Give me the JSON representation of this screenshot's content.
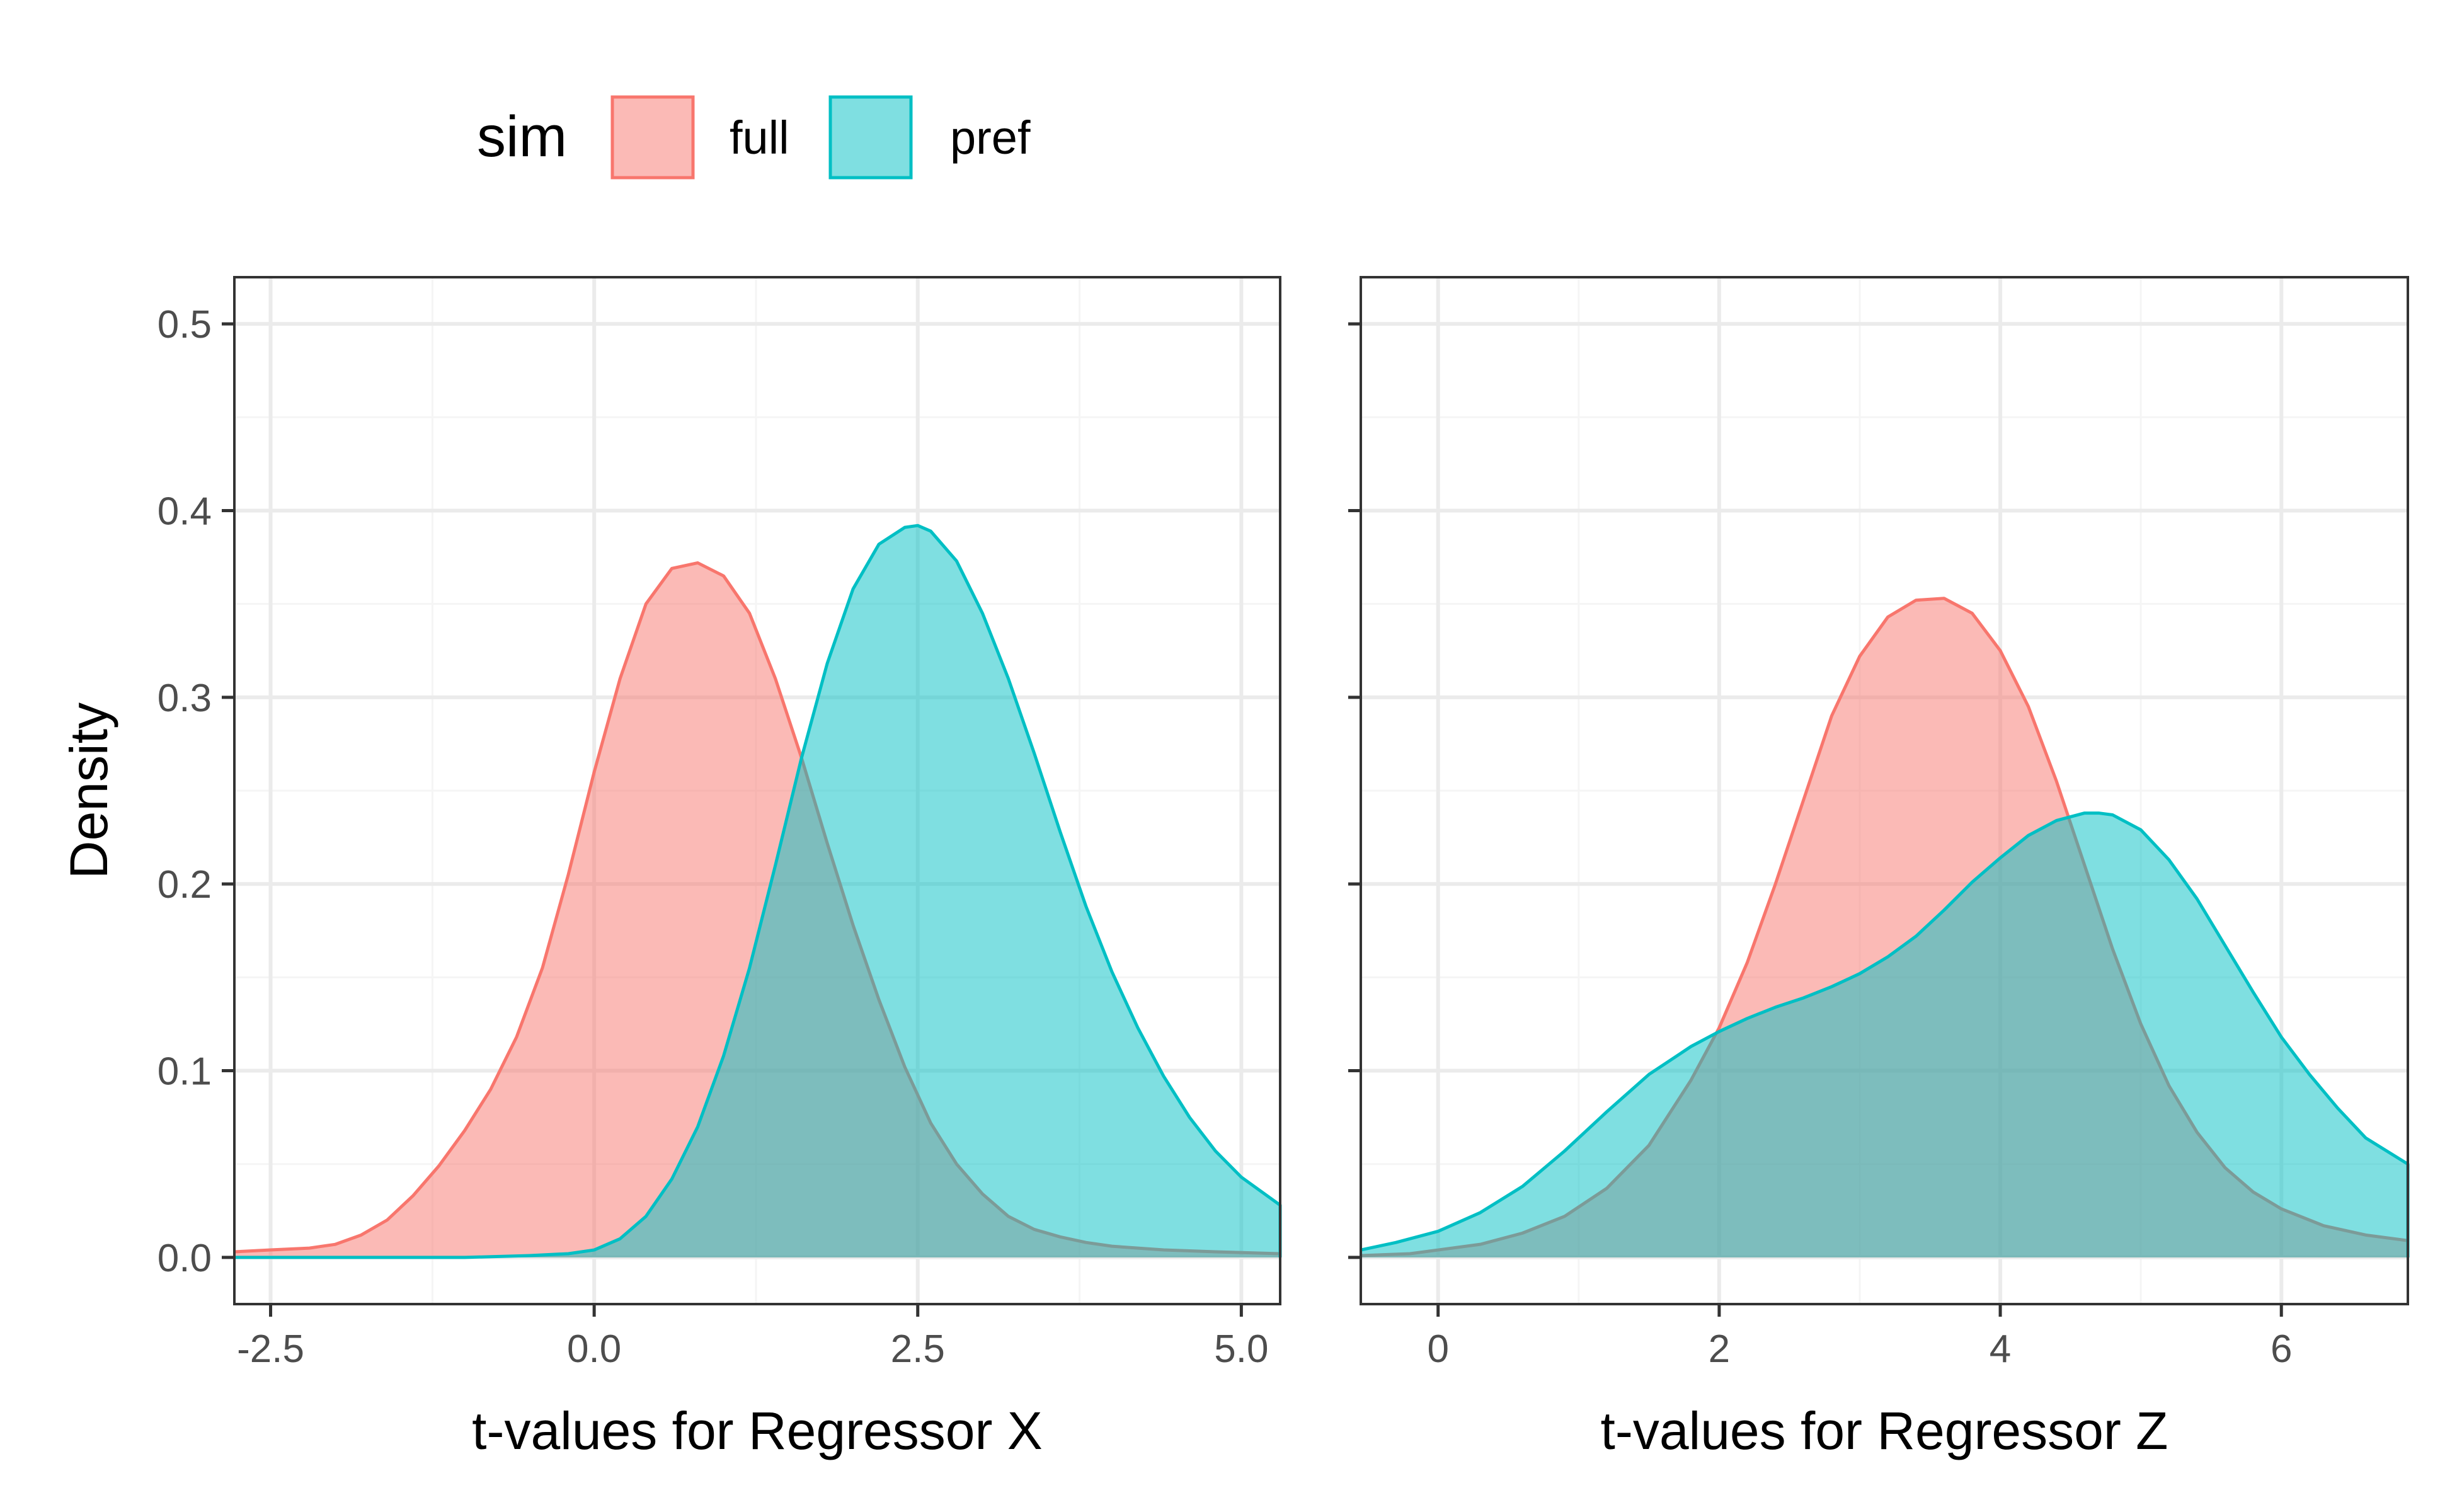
{
  "legend": {
    "title": "sim",
    "position": "top",
    "items": [
      {
        "label": "full",
        "fill": "#F8766D",
        "stroke": "#F8766D"
      },
      {
        "label": "pref",
        "fill": "#00BFC4",
        "stroke": "#00BFC4"
      }
    ]
  },
  "colors": {
    "full": "#F8766D",
    "pref": "#00BFC4",
    "overlap": "#7FB7B4",
    "grid_major": "#EBEBEB",
    "grid_minor": "#F5F5F5",
    "panel_border": "#333333"
  },
  "chart_data": [
    {
      "type": "area",
      "name": "panel-x",
      "xlabel": "t-values for Regressor X",
      "ylabel": "Density",
      "xlim": [
        -2.78,
        5.3
      ],
      "ylim": [
        0,
        0.5
      ],
      "xticks": [
        {
          "v": -2.5,
          "label": "-2.5"
        },
        {
          "v": 0,
          "label": "0.0"
        },
        {
          "v": 2.5,
          "label": "2.5"
        },
        {
          "v": 5,
          "label": "5.0"
        }
      ],
      "yticks": [
        {
          "v": 0,
          "label": "0.0"
        },
        {
          "v": 0.1,
          "label": "0.1"
        },
        {
          "v": 0.2,
          "label": "0.2"
        },
        {
          "v": 0.3,
          "label": "0.3"
        },
        {
          "v": 0.4,
          "label": "0.4"
        },
        {
          "v": 0.5,
          "label": "0.5"
        }
      ],
      "show_y_labels": true,
      "grid": true,
      "series": [
        {
          "name": "full",
          "x": [
            -2.78,
            -2.5,
            -2.2,
            -2.0,
            -1.8,
            -1.6,
            -1.4,
            -1.2,
            -1.0,
            -0.8,
            -0.6,
            -0.4,
            -0.2,
            0.0,
            0.2,
            0.4,
            0.6,
            0.8,
            1.0,
            1.2,
            1.4,
            1.6,
            1.8,
            2.0,
            2.2,
            2.4,
            2.6,
            2.8,
            3.0,
            3.2,
            3.4,
            3.6,
            3.8,
            4.0,
            4.4,
            4.8,
            5.3
          ],
          "y": [
            0.003,
            0.004,
            0.005,
            0.007,
            0.012,
            0.02,
            0.033,
            0.049,
            0.068,
            0.09,
            0.118,
            0.155,
            0.205,
            0.26,
            0.31,
            0.35,
            0.369,
            0.372,
            0.365,
            0.345,
            0.31,
            0.268,
            0.222,
            0.178,
            0.138,
            0.102,
            0.072,
            0.05,
            0.034,
            0.022,
            0.015,
            0.011,
            0.008,
            0.006,
            0.004,
            0.003,
            0.002
          ]
        },
        {
          "name": "pref",
          "x": [
            -2.78,
            -2.0,
            -1.0,
            -0.5,
            -0.2,
            0.0,
            0.2,
            0.4,
            0.6,
            0.8,
            1.0,
            1.2,
            1.4,
            1.6,
            1.8,
            2.0,
            2.2,
            2.4,
            2.5,
            2.6,
            2.8,
            3.0,
            3.2,
            3.4,
            3.6,
            3.8,
            4.0,
            4.2,
            4.4,
            4.6,
            4.8,
            5.0,
            5.3
          ],
          "y": [
            0.0,
            0.0,
            0.0,
            0.001,
            0.002,
            0.004,
            0.01,
            0.022,
            0.042,
            0.07,
            0.108,
            0.155,
            0.21,
            0.267,
            0.318,
            0.358,
            0.382,
            0.391,
            0.392,
            0.389,
            0.373,
            0.345,
            0.31,
            0.27,
            0.228,
            0.188,
            0.153,
            0.123,
            0.097,
            0.075,
            0.057,
            0.043,
            0.028
          ]
        }
      ]
    },
    {
      "type": "area",
      "name": "panel-z",
      "xlabel": "t-values for Regressor Z",
      "ylabel": "",
      "xlim": [
        -0.55,
        6.9
      ],
      "ylim": [
        0,
        0.5
      ],
      "xticks": [
        {
          "v": 0,
          "label": "0"
        },
        {
          "v": 2,
          "label": "2"
        },
        {
          "v": 4,
          "label": "4"
        },
        {
          "v": 6,
          "label": "6"
        }
      ],
      "yticks": [
        {
          "v": 0,
          "label": ""
        },
        {
          "v": 0.1,
          "label": ""
        },
        {
          "v": 0.2,
          "label": ""
        },
        {
          "v": 0.3,
          "label": ""
        },
        {
          "v": 0.4,
          "label": ""
        },
        {
          "v": 0.5,
          "label": ""
        }
      ],
      "show_y_labels": false,
      "grid": true,
      "series": [
        {
          "name": "full",
          "x": [
            -0.55,
            -0.2,
            0.0,
            0.3,
            0.6,
            0.9,
            1.2,
            1.5,
            1.8,
            2.0,
            2.2,
            2.4,
            2.6,
            2.8,
            3.0,
            3.2,
            3.4,
            3.6,
            3.8,
            4.0,
            4.2,
            4.4,
            4.6,
            4.8,
            5.0,
            5.2,
            5.4,
            5.6,
            5.8,
            6.0,
            6.3,
            6.6,
            6.9
          ],
          "y": [
            0.001,
            0.002,
            0.004,
            0.007,
            0.013,
            0.022,
            0.037,
            0.06,
            0.095,
            0.123,
            0.158,
            0.2,
            0.245,
            0.29,
            0.322,
            0.343,
            0.352,
            0.353,
            0.345,
            0.325,
            0.295,
            0.255,
            0.21,
            0.165,
            0.125,
            0.092,
            0.067,
            0.048,
            0.035,
            0.026,
            0.017,
            0.012,
            0.009
          ]
        },
        {
          "name": "pref",
          "x": [
            -0.55,
            -0.3,
            0.0,
            0.3,
            0.6,
            0.9,
            1.2,
            1.5,
            1.8,
            2.0,
            2.2,
            2.4,
            2.6,
            2.8,
            3.0,
            3.2,
            3.4,
            3.6,
            3.8,
            4.0,
            4.2,
            4.4,
            4.6,
            4.7,
            4.8,
            5.0,
            5.2,
            5.4,
            5.6,
            5.8,
            6.0,
            6.2,
            6.4,
            6.6,
            6.9
          ],
          "y": [
            0.004,
            0.008,
            0.014,
            0.024,
            0.038,
            0.057,
            0.078,
            0.098,
            0.113,
            0.121,
            0.128,
            0.134,
            0.139,
            0.145,
            0.152,
            0.161,
            0.172,
            0.186,
            0.201,
            0.214,
            0.226,
            0.234,
            0.238,
            0.238,
            0.237,
            0.229,
            0.213,
            0.192,
            0.167,
            0.142,
            0.118,
            0.098,
            0.08,
            0.064,
            0.05
          ]
        }
      ]
    }
  ]
}
